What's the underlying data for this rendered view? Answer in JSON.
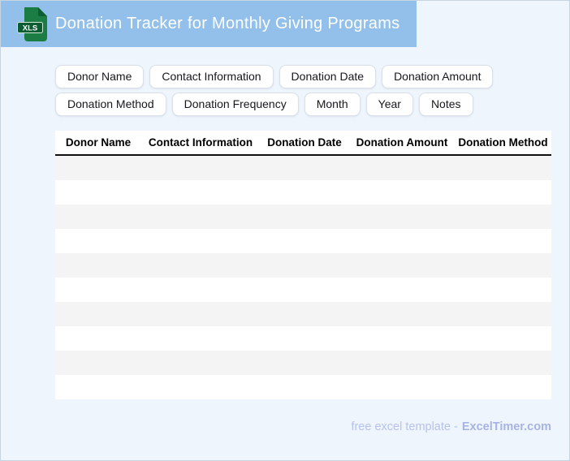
{
  "header": {
    "title": "Donation Tracker for Monthly Giving Programs",
    "icon_label": "XLS",
    "banner_color": "#92c0ea",
    "icon_green": "#1b7d44",
    "icon_band_green": "#0b5c33"
  },
  "chips": {
    "rows": [
      [
        "Donor Name",
        "Contact Information",
        "Donation Date",
        "Donation Amount"
      ],
      [
        "Donation Method",
        "Donation Frequency",
        "Month",
        "Year",
        "Notes"
      ]
    ]
  },
  "table": {
    "columns": [
      "Donor Name",
      "Contact Information",
      "Donation Date",
      "Donation Amount",
      "Donation Method"
    ],
    "empty_row_count": 10,
    "stripe_color": "#f4f4f4",
    "header_rule_color": "#101010"
  },
  "footer": {
    "text": "free excel template -",
    "brand": "ExcelTimer.com"
  },
  "colors": {
    "page_background": "#eef5fc",
    "footer_text": "#b7c2ec",
    "footer_brand": "#a7b3e4"
  }
}
